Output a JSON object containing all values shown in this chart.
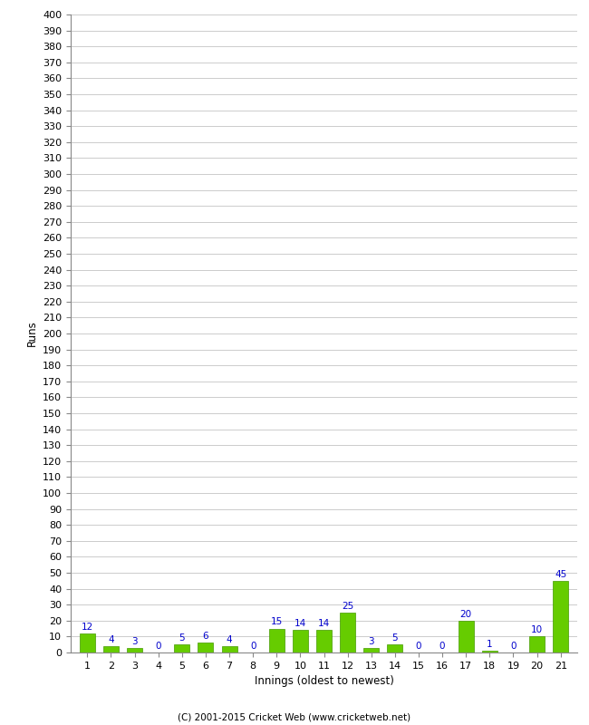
{
  "innings": [
    1,
    2,
    3,
    4,
    5,
    6,
    7,
    8,
    9,
    10,
    11,
    12,
    13,
    14,
    15,
    16,
    17,
    18,
    19,
    20,
    21
  ],
  "runs": [
    12,
    4,
    3,
    0,
    5,
    6,
    4,
    0,
    15,
    14,
    14,
    25,
    3,
    5,
    0,
    0,
    20,
    1,
    0,
    10,
    45
  ],
  "bar_color": "#66cc00",
  "bar_edge_color": "#449900",
  "label_color": "#0000cc",
  "background_color": "#ffffff",
  "grid_color": "#cccccc",
  "ylabel": "Runs",
  "xlabel": "Innings (oldest to newest)",
  "ylim": [
    0,
    400
  ],
  "yticks": [
    0,
    10,
    20,
    30,
    40,
    50,
    60,
    70,
    80,
    90,
    100,
    110,
    120,
    130,
    140,
    150,
    160,
    170,
    180,
    190,
    200,
    210,
    220,
    230,
    240,
    250,
    260,
    270,
    280,
    290,
    300,
    310,
    320,
    330,
    340,
    350,
    360,
    370,
    380,
    390,
    400
  ],
  "footer": "(C) 2001-2015 Cricket Web (www.cricketweb.net)",
  "label_fontsize": 7.5,
  "axis_tick_fontsize": 8,
  "axis_label_fontsize": 8.5,
  "footer_fontsize": 7.5
}
